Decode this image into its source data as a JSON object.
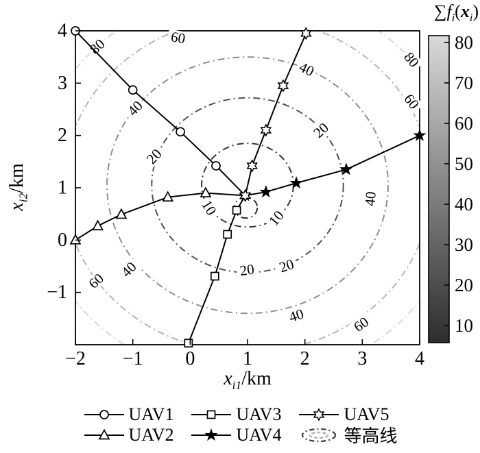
{
  "figure": {
    "axes": {
      "xlabel": {
        "var": "x",
        "sub": "i1",
        "unit": "/km"
      },
      "ylabel": {
        "var": "x",
        "sub": "i2",
        "unit": "/km"
      },
      "xtick_labels": [
        -2,
        -1,
        0,
        1,
        2,
        3,
        4
      ],
      "ytick_labels": [
        -1,
        0,
        1,
        2,
        3,
        4
      ]
    },
    "colorbar": {
      "title": {
        "sigma": "∑",
        "fname": "f",
        "fsub": "i",
        "open": "(",
        "arg": "x",
        "argsub": "i",
        "close": ")"
      },
      "ticks": [
        80,
        70,
        60,
        50,
        40,
        30,
        20,
        10
      ],
      "color_top": "#d9d9d9",
      "color_bottom": "#2d2d2d"
    }
  },
  "chart_data": {
    "type": "line",
    "title": "",
    "xlabel": "x_i1/km",
    "ylabel": "x_i2/km",
    "colorbar_title": "∑ f_i(x_i)",
    "xlim": [
      -2,
      4
    ],
    "ylim": [
      -2,
      4
    ],
    "grid": false,
    "legend_position": "below",
    "series": [
      {
        "name": "UAV1",
        "marker": "circle",
        "end_marker": false,
        "points": [
          [
            -2.0,
            4.0
          ],
          [
            -1.0,
            2.87
          ],
          [
            -0.17,
            2.07
          ],
          [
            0.45,
            1.42
          ],
          [
            0.96,
            0.85
          ]
        ]
      },
      {
        "name": "UAV2",
        "marker": "triangle",
        "end_marker": false,
        "points": [
          [
            -2.0,
            0.0
          ],
          [
            -1.61,
            0.27
          ],
          [
            -1.2,
            0.49
          ],
          [
            -0.39,
            0.82
          ],
          [
            0.27,
            0.9
          ],
          [
            0.96,
            0.85
          ]
        ]
      },
      {
        "name": "UAV3",
        "marker": "square",
        "end_marker": false,
        "points": [
          [
            -0.03,
            -1.97
          ],
          [
            0.43,
            -0.69
          ],
          [
            0.65,
            0.11
          ],
          [
            0.81,
            0.57
          ],
          [
            0.96,
            0.85
          ]
        ]
      },
      {
        "name": "UAV4",
        "marker": "star",
        "end_marker": true,
        "points": [
          [
            4.0,
            2.0
          ],
          [
            2.72,
            1.35
          ],
          [
            1.85,
            1.09
          ],
          [
            1.32,
            0.92
          ],
          [
            0.96,
            0.85
          ]
        ]
      },
      {
        "name": "UAV5",
        "marker": "hexagram",
        "end_marker": true,
        "points": [
          [
            2.02,
            3.95
          ],
          [
            1.62,
            2.95
          ],
          [
            1.32,
            2.1
          ],
          [
            1.08,
            1.42
          ],
          [
            0.96,
            0.85
          ]
        ]
      }
    ],
    "contours": {
      "center": [
        1.0,
        1.05
      ],
      "rings": [
        {
          "level": null,
          "r": 0.2,
          "color": "#2e2e2e",
          "cx": 0.97,
          "cy": 0.62
        },
        {
          "level": 10,
          "r": 0.8,
          "color": "#353535"
        },
        {
          "level": 20,
          "r": 1.67,
          "color": "#515151"
        },
        {
          "level": 40,
          "r": 2.45,
          "color": "#8e8e8e"
        },
        {
          "level": 60,
          "r": 3.2,
          "color": "#b5b5b5"
        },
        {
          "level": 80,
          "r": 3.73,
          "color": "#d7d7d7"
        },
        {
          "level": null,
          "r": 4.25,
          "color": "#ececec"
        }
      ],
      "labels": [
        {
          "text": "80",
          "x": -1.62,
          "y": 3.7,
          "rot": -43
        },
        {
          "text": "60",
          "x": -0.21,
          "y": 3.87,
          "rot": 10
        },
        {
          "text": "40",
          "x": -0.96,
          "y": 2.52,
          "rot": -46
        },
        {
          "text": "20",
          "x": -0.63,
          "y": 1.6,
          "rot": -47
        },
        {
          "text": "10",
          "x": 0.33,
          "y": 0.62,
          "rot": 58
        },
        {
          "text": "10",
          "x": 1.5,
          "y": 0.42,
          "rot": -50
        },
        {
          "text": "20",
          "x": 2.28,
          "y": 2.1,
          "rot": -42
        },
        {
          "text": "40",
          "x": 2.03,
          "y": 3.27,
          "rot": 25
        },
        {
          "text": "80",
          "x": 3.86,
          "y": 3.45,
          "rot": 50
        },
        {
          "text": "60",
          "x": 3.86,
          "y": 2.65,
          "rot": 52
        },
        {
          "text": "40",
          "x": 3.14,
          "y": 0.79,
          "rot": -85
        },
        {
          "text": "20",
          "x": 0.99,
          "y": -0.57,
          "rot": -8
        },
        {
          "text": "20",
          "x": 1.68,
          "y": -0.49,
          "rot": -18
        },
        {
          "text": "40",
          "x": 1.85,
          "y": -1.44,
          "rot": -18
        },
        {
          "text": "60",
          "x": 2.98,
          "y": -1.61,
          "rot": -35
        },
        {
          "text": "40",
          "x": -1.07,
          "y": -0.56,
          "rot": -45
        },
        {
          "text": "60",
          "x": -1.64,
          "y": -0.78,
          "rot": -42
        }
      ]
    }
  },
  "legend": {
    "items": [
      {
        "label": "UAV1",
        "marker": "circle"
      },
      {
        "label": "UAV3",
        "marker": "square"
      },
      {
        "label": "UAV5",
        "marker": "hexagram"
      },
      {
        "label": "UAV2",
        "marker": "triangle"
      },
      {
        "label": "UAV4",
        "marker": "star"
      },
      {
        "label": "等高线",
        "marker": "contour"
      }
    ]
  }
}
